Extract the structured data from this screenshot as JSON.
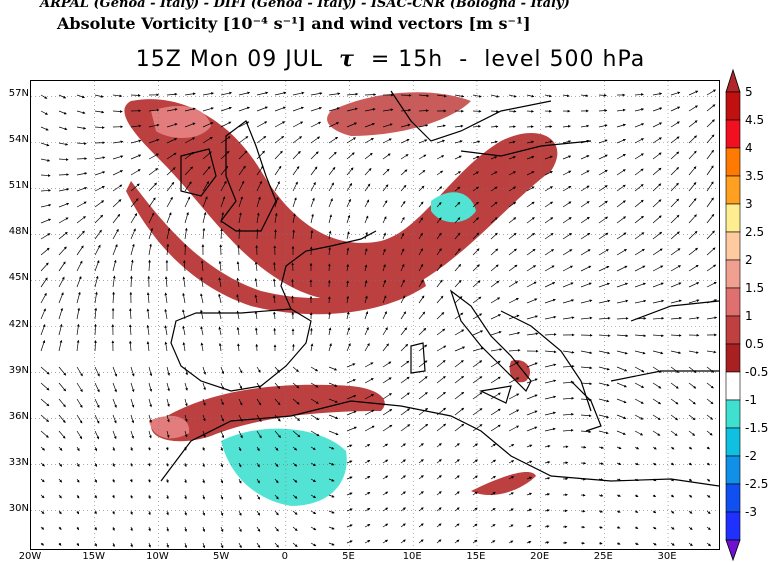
{
  "header": {
    "credits": "ARPAL (Genoa - Italy)  -  DIFI (Genoa - Italy)  -  ISAC-CNR (Bologna - Italy)",
    "variable_title": "Absolute Vorticity [10⁻⁴ s⁻¹] and wind vectors [m s⁻¹]",
    "time_label": "15Z Mon 09 JUL",
    "tau_symbol": "τ",
    "tau_value": "= 15h",
    "separator": "-",
    "level_label": "level 500 hPa"
  },
  "map": {
    "lat_labels": [
      "57N",
      "54N",
      "51N",
      "48N",
      "45N",
      "42N",
      "39N",
      "36N",
      "33N",
      "30N"
    ],
    "lon_labels": [
      "20W",
      "15W",
      "10W",
      "5W",
      "0",
      "5E",
      "10E",
      "15E",
      "20E",
      "25E",
      "30E"
    ],
    "lon_range": [
      -20,
      34
    ],
    "lat_range": [
      27.5,
      58
    ]
  },
  "colorbar": {
    "labels": [
      "5",
      "4.5",
      "4",
      "3.5",
      "3",
      "2.5",
      "2",
      "1.5",
      "1",
      "0.5",
      "-0.5",
      "-1",
      "-1.5",
      "-2",
      "-2.5",
      "-3"
    ],
    "colors": [
      "#b0262a",
      "#c01010",
      "#f01020",
      "#ff7a00",
      "#ffa020",
      "#ffee90",
      "#ffcaa0",
      "#f0a090",
      "#e07070",
      "#c04040",
      "#a82020",
      "#ffffff",
      "#40e0d0",
      "#10c0e0",
      "#1090e8",
      "#1050f0",
      "#2030ff",
      "#7010d0"
    ]
  }
}
